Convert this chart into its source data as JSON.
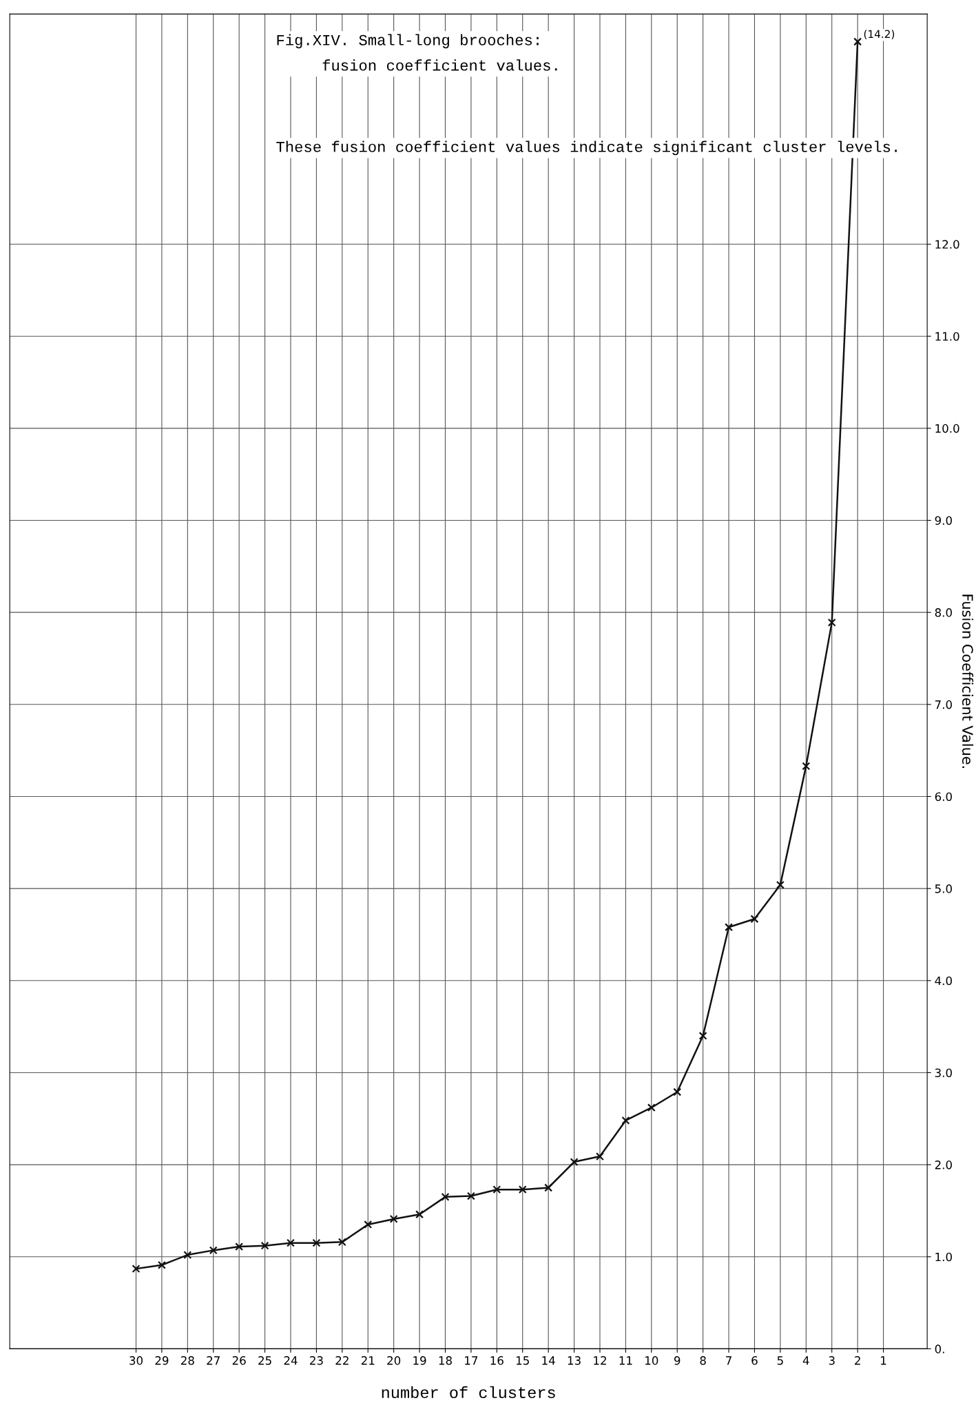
{
  "chart_data": {
    "type": "line",
    "title": "Fig.XIV. Small-long brooches:\n     fusion coefficient values.",
    "annotations": [
      "These fusion coefficient values indicate significant cluster levels.",
      {
        "text": "(14.2)",
        "x": "2",
        "y": 14.2
      }
    ],
    "xlabel": "number of clusters",
    "ylabel": "Fusion Coefficient Value.",
    "categories": [
      "30",
      "29",
      "28",
      "27",
      "26",
      "25",
      "24",
      "23",
      "22",
      "21",
      "20",
      "19",
      "18",
      "17",
      "16",
      "15",
      "14",
      "13",
      "12",
      "11",
      "10",
      "9",
      "8",
      "7",
      "6",
      "5",
      "4",
      "3",
      "2",
      "1"
    ],
    "series": [
      {
        "color": "#111111",
        "values": [
          0.87,
          0.91,
          1.02,
          1.07,
          1.11,
          1.12,
          1.15,
          1.15,
          1.16,
          1.35,
          1.41,
          1.46,
          1.65,
          1.66,
          1.73,
          1.73,
          1.75,
          2.03,
          2.09,
          2.48,
          2.62,
          2.79,
          3.4,
          4.58,
          4.67,
          5.04,
          6.33,
          7.89,
          14.2,
          null
        ]
      }
    ],
    "ylim": [
      0,
      14.5
    ],
    "yticks": [
      {
        "value": 0,
        "label": "0."
      },
      {
        "value": 1,
        "label": "1.0"
      },
      {
        "value": 2,
        "label": "2.0"
      },
      {
        "value": 3,
        "label": "3.0"
      },
      {
        "value": 4,
        "label": "4.0"
      },
      {
        "value": 5,
        "label": "5.0"
      },
      {
        "value": 6,
        "label": "6.0"
      },
      {
        "value": 7,
        "label": "7.0"
      },
      {
        "value": 8,
        "label": "8.0"
      },
      {
        "value": 9,
        "label": "9.0"
      },
      {
        "value": 10,
        "label": "10.0"
      },
      {
        "value": 11,
        "label": "11.0"
      },
      {
        "value": 12,
        "label": "12.0"
      }
    ],
    "grid": true,
    "marker": "cross",
    "line_style": "solid",
    "legend": false
  }
}
